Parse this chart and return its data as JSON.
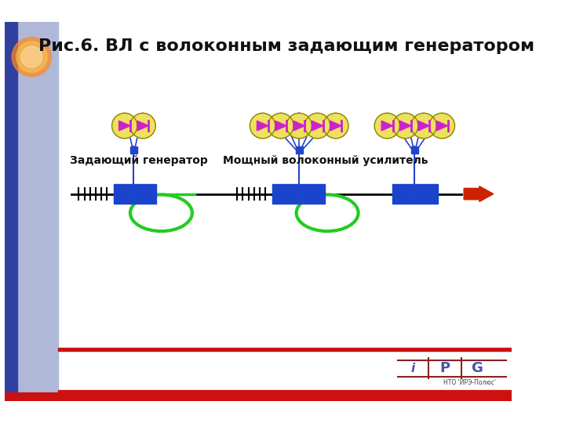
{
  "title": "Рис.6. ВЛ с волоконным задающим генератором",
  "title_fontsize": 16,
  "label1": "Задающий генератор",
  "label2": "Мощный волоконный усилитель",
  "label_fontsize": 10,
  "bg_color": "#ffffff",
  "line_color": "#000000",
  "blue_block_color": "#1a44cc",
  "green_loop_color": "#22cc22",
  "pump_circle_color": "#f0e060",
  "pump_arrow_color": "#cc22cc",
  "connector_color": "#2244cc",
  "arrow_color": "#cc2200",
  "ipg_line_color": "#882222",
  "tick_color": "#000000",
  "logo_color": "#4455aa"
}
